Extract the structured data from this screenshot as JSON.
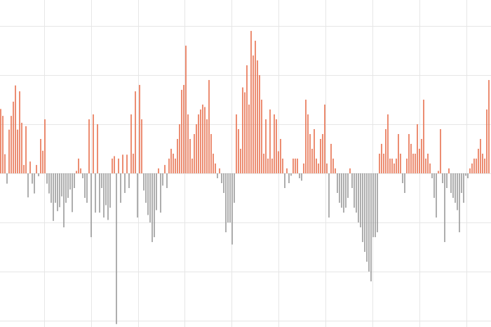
{
  "chart_data": {
    "type": "bar",
    "positive_color": "#e8714f",
    "negative_color": "#9a9a9a",
    "grid": true,
    "ylim": [
      -3.13,
      3.53
    ],
    "yticks": [
      -3,
      -2,
      -1,
      0,
      1,
      2,
      3
    ],
    "values": [
      1.31,
      1.17,
      0.39,
      -0.21,
      0.89,
      1.17,
      1.46,
      1.79,
      0.89,
      1.67,
      1.03,
      0.17,
      0.96,
      -0.49,
      0.24,
      -0.21,
      -0.41,
      0.17,
      -0.06,
      0.7,
      0.46,
      1.1,
      -0.21,
      -0.41,
      -0.6,
      -0.97,
      -0.6,
      -0.77,
      -0.69,
      -0.47,
      -1.1,
      -0.6,
      -0.5,
      -0.33,
      -0.79,
      -0.3,
      0.05,
      0.3,
      0.1,
      -0.1,
      -0.5,
      -0.6,
      1.1,
      -1.3,
      1.2,
      -0.8,
      1.0,
      -0.8,
      -0.3,
      -0.9,
      -0.65,
      -0.95,
      -0.7,
      0.3,
      0.35,
      -3.07,
      0.3,
      -0.6,
      0.38,
      -0.4,
      0.38,
      -0.3,
      1.2,
      0.4,
      1.67,
      -0.9,
      1.8,
      1.1,
      -0.35,
      -0.6,
      -0.85,
      -1.0,
      -1.4,
      -1.3,
      -0.75,
      0.1,
      -0.8,
      -0.25,
      0.17,
      -0.3,
      0.3,
      0.5,
      0.4,
      0.3,
      0.7,
      1.0,
      1.7,
      1.8,
      2.6,
      1.2,
      0.7,
      0.3,
      0.8,
      1.0,
      1.2,
      1.3,
      1.4,
      1.35,
      1.1,
      1.9,
      0.8,
      0.4,
      0.2,
      -0.1,
      0.1,
      -0.2,
      -0.4,
      -1.2,
      -1.0,
      -1.0,
      -1.45,
      -0.6,
      1.2,
      0.9,
      0.5,
      1.75,
      1.65,
      2.2,
      1.4,
      2.9,
      2.4,
      2.7,
      2.3,
      2.0,
      1.5,
      0.4,
      1.1,
      0.3,
      1.3,
      0.3,
      1.2,
      1.1,
      0.45,
      0.7,
      0.3,
      -0.3,
      0.1,
      -0.2,
      -0.05,
      0.3,
      0.3,
      0.3,
      -0.1,
      -0.15,
      0.2,
      1.5,
      1.2,
      0.8,
      0.5,
      0.9,
      0.3,
      0.2,
      0.7,
      0.8,
      1.4,
      0.2,
      -0.9,
      0.6,
      0.3,
      0.1,
      -0.4,
      -0.6,
      -0.7,
      -0.8,
      -0.7,
      -0.5,
      0.1,
      -0.3,
      -0.7,
      -0.8,
      -1.0,
      -1.1,
      -1.4,
      -1.6,
      -1.8,
      -2.0,
      -2.2,
      -1.3,
      -1.3,
      -1.2,
      0.4,
      0.6,
      0.4,
      0.9,
      1.2,
      0.3,
      0.3,
      0.2,
      0.3,
      0.8,
      0.4,
      -0.2,
      -0.4,
      0.3,
      0.8,
      0.6,
      0.4,
      0.4,
      1.0,
      0.5,
      0.7,
      1.5,
      0.3,
      0.4,
      0.2,
      -0.1,
      -0.5,
      -0.9,
      0.05,
      0.9,
      -0.2,
      -1.4,
      -0.3,
      0.1,
      -0.4,
      -0.5,
      -0.6,
      -0.75,
      -1.2,
      -0.4,
      -0.6,
      -0.05,
      -0.1,
      0.1,
      0.2,
      0.3,
      0.3,
      0.5,
      0.7,
      0.4,
      0.3,
      1.3,
      1.9
    ]
  }
}
